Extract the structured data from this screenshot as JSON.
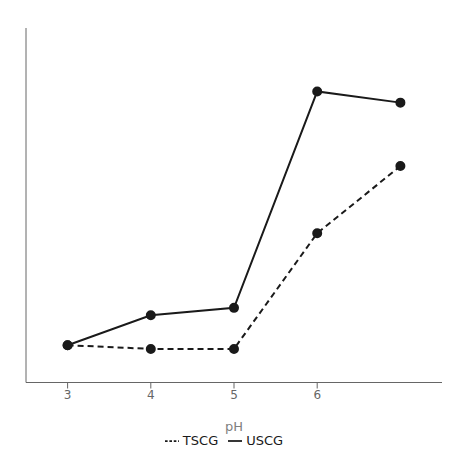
{
  "chart_data": {
    "type": "line",
    "x": [
      3,
      4,
      5,
      6,
      7
    ],
    "series": [
      {
        "name": "USCG",
        "color": "#1a1a1a",
        "values": [
          10,
          18,
          20,
          78,
          75
        ],
        "line_style": "solid",
        "marker": "circle"
      },
      {
        "name": "TSCG",
        "color": "#1a1a1a",
        "values": [
          10,
          9,
          9,
          40,
          58
        ],
        "line_style": "dashed",
        "marker": "circle"
      }
    ],
    "xlabel": "pH",
    "xlim": [
      2.5,
      7.5
    ],
    "xticks": [
      3,
      4,
      5,
      6
    ],
    "ylim": [
      0,
      95
    ],
    "tick_labels": "x",
    "legend": "bottom",
    "grid": false
  }
}
